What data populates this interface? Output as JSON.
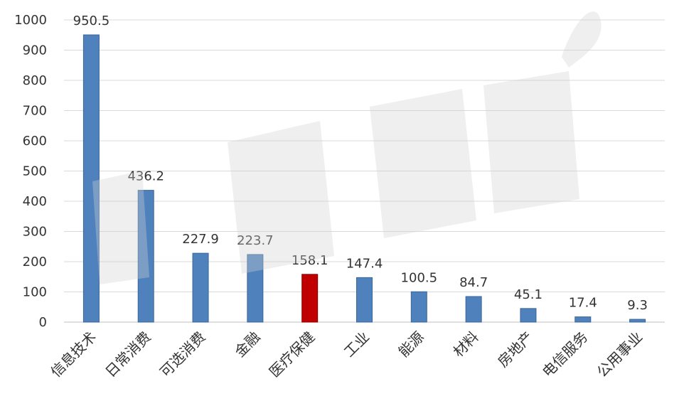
{
  "chart_data": {
    "type": "bar",
    "title": "",
    "xlabel": "",
    "ylabel": "",
    "ylim": [
      0,
      1000
    ],
    "yticks": [
      0,
      100,
      200,
      300,
      400,
      500,
      600,
      700,
      800,
      900,
      1000
    ],
    "grid": true,
    "legend": "none",
    "categories": [
      "信息技术",
      "日常消费",
      "可选消费",
      "金融",
      "医疗保健",
      "工业",
      "能源",
      "材料",
      "房地产",
      "电信服务",
      "公用事业"
    ],
    "values": [
      950.5,
      436.2,
      227.9,
      223.7,
      158.1,
      147.4,
      100.5,
      84.7,
      45.1,
      17.4,
      9.3
    ],
    "value_labels": [
      "950.5",
      "436.2",
      "227.9",
      "223.7",
      "158.1",
      "147.4",
      "100.5",
      "84.7",
      "45.1",
      "17.4",
      "9.3"
    ],
    "highlight_index": 4,
    "colors": {
      "bar": "#4f81bd",
      "bar_border": "#3a6797",
      "highlight": "#c00000",
      "highlight_border": "#8b0000"
    }
  },
  "watermark": {
    "text": "新康界",
    "color": "#cccccc"
  }
}
